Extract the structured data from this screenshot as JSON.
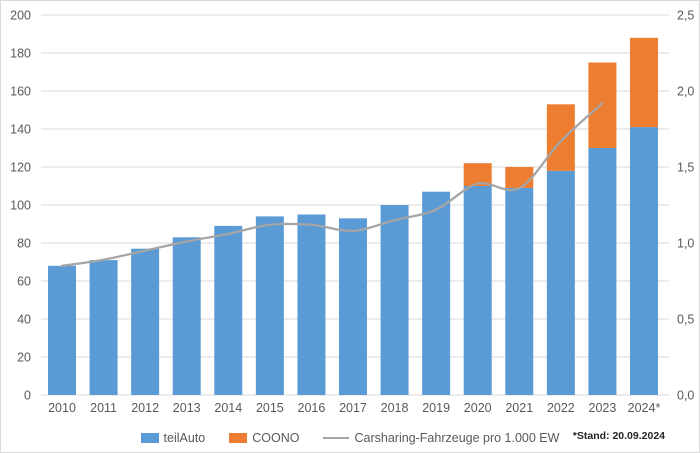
{
  "chart_data": {
    "type": "bar",
    "subtype": "stacked-column-with-line",
    "categories": [
      "2010",
      "2011",
      "2012",
      "2013",
      "2014",
      "2015",
      "2016",
      "2017",
      "2018",
      "2019",
      "2020",
      "2021",
      "2022",
      "2023",
      "2024*"
    ],
    "series": [
      {
        "name": "teilAuto",
        "type": "bar",
        "stack": true,
        "axis": "left",
        "color": "#5b9bd5",
        "values": [
          68,
          71,
          77,
          83,
          89,
          94,
          95,
          93,
          100,
          107,
          110,
          109,
          118,
          130,
          141
        ]
      },
      {
        "name": "COONO",
        "type": "bar",
        "stack": true,
        "axis": "left",
        "color": "#ed7d31",
        "values": [
          0,
          0,
          0,
          0,
          0,
          0,
          0,
          0,
          0,
          0,
          12,
          11,
          35,
          45,
          47
        ]
      },
      {
        "name": "Carsharing-Fahrzeuge pro 1.000 EW",
        "type": "line",
        "axis": "right",
        "color": "#a5a5a5",
        "values": [
          0.85,
          0.89,
          0.95,
          1.01,
          1.06,
          1.12,
          1.12,
          1.08,
          1.15,
          1.22,
          1.39,
          1.36,
          1.67,
          1.92,
          null
        ]
      }
    ],
    "left_axis": {
      "min": 0,
      "max": 200,
      "tick_step": 20,
      "tick_labels": [
        "0",
        "20",
        "40",
        "60",
        "80",
        "100",
        "120",
        "140",
        "160",
        "180",
        "200"
      ]
    },
    "right_axis": {
      "min": 0,
      "max": 2.5,
      "tick_step": 0.5,
      "tick_labels": [
        "0,0",
        "0,5",
        "1,0",
        "1,5",
        "2,0",
        "2,5"
      ]
    },
    "grid": true,
    "legend_position": "bottom",
    "title": ""
  },
  "legend": {
    "items": [
      {
        "label": "teilAuto",
        "marker": "square",
        "color": "#5b9bd5"
      },
      {
        "label": "COONO",
        "marker": "square",
        "color": "#ed7d31"
      },
      {
        "label": "Carsharing-Fahrzeuge pro 1.000 EW",
        "marker": "line",
        "color": "#a5a5a5"
      }
    ]
  },
  "footnote": "*Stand: 20.09.2024",
  "colors": {
    "bar_blue": "#5b9bd5",
    "bar_orange": "#ed7d31",
    "line_gray": "#a5a5a5",
    "grid": "#d9d9d9",
    "text": "#595959",
    "background": "#ffffff",
    "border": "#d9d9d9"
  }
}
